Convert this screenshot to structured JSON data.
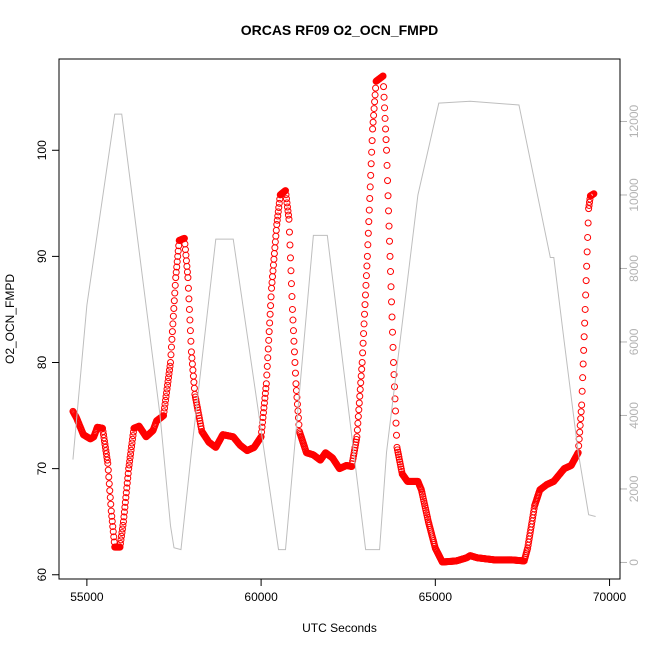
{
  "chart_data": {
    "type": "scatter",
    "title": "ORCAS RF09 O2_OCN_FMPD",
    "xlabel": "UTC Seconds",
    "ylabel": "O2_OCN_FMPD",
    "xlim": [
      54200,
      70300
    ],
    "ylim": [
      59.6,
      108.6
    ],
    "x_ticks": [
      55000,
      60000,
      65000,
      70000
    ],
    "y_ticks": [
      60,
      70,
      80,
      90,
      100
    ],
    "y2lim": [
      -450,
      13700
    ],
    "y2_ticks": [
      0,
      2000,
      4000,
      6000,
      8000,
      10000,
      12000
    ],
    "colors": {
      "points": "#ff0000",
      "altitude": "#bebebe"
    },
    "grid": false,
    "series": [
      {
        "marker": "open-circle",
        "axis": "left",
        "keypoints": [
          [
            54600,
            75.4
          ],
          [
            54700,
            74.8
          ],
          [
            54900,
            73.2
          ],
          [
            55100,
            72.8
          ],
          [
            55200,
            73.0
          ],
          [
            55300,
            73.9
          ],
          [
            55450,
            73.8
          ],
          [
            55600,
            70.5
          ],
          [
            55700,
            66.0
          ],
          [
            55800,
            62.6
          ],
          [
            55950,
            62.6
          ],
          [
            56050,
            65.0
          ],
          [
            56200,
            70.0
          ],
          [
            56350,
            73.8
          ],
          [
            56500,
            74.0
          ],
          [
            56700,
            73.0
          ],
          [
            56900,
            73.6
          ],
          [
            57000,
            74.5
          ],
          [
            57200,
            75.0
          ],
          [
            57400,
            80.0
          ],
          [
            57550,
            88.0
          ],
          [
            57650,
            91.5
          ],
          [
            57800,
            91.7
          ],
          [
            57900,
            88.0
          ],
          [
            58000,
            81.0
          ],
          [
            58100,
            77.0
          ],
          [
            58300,
            73.5
          ],
          [
            58500,
            72.5
          ],
          [
            58700,
            72.0
          ],
          [
            58900,
            73.2
          ],
          [
            59200,
            73.0
          ],
          [
            59400,
            72.2
          ],
          [
            59600,
            71.7
          ],
          [
            59800,
            72.0
          ],
          [
            60000,
            73.0
          ],
          [
            60150,
            78.0
          ],
          [
            60300,
            87.0
          ],
          [
            60450,
            93.0
          ],
          [
            60550,
            95.8
          ],
          [
            60700,
            96.2
          ],
          [
            60800,
            93.5
          ],
          [
            60900,
            85.0
          ],
          [
            61000,
            78.0
          ],
          [
            61100,
            73.5
          ],
          [
            61300,
            71.5
          ],
          [
            61500,
            71.3
          ],
          [
            61700,
            70.8
          ],
          [
            61850,
            71.5
          ],
          [
            62050,
            71.0
          ],
          [
            62250,
            70.0
          ],
          [
            62450,
            70.3
          ],
          [
            62600,
            70.2
          ],
          [
            62750,
            73.0
          ],
          [
            62900,
            80.0
          ],
          [
            63050,
            90.0
          ],
          [
            63200,
            102.0
          ],
          [
            63300,
            106.5
          ],
          [
            63500,
            107.0
          ],
          [
            63600,
            100.0
          ],
          [
            63700,
            90.0
          ],
          [
            63800,
            80.0
          ],
          [
            63900,
            72.0
          ],
          [
            64050,
            69.5
          ],
          [
            64200,
            68.8
          ],
          [
            64350,
            68.8
          ],
          [
            64500,
            68.8
          ],
          [
            64600,
            68.0
          ],
          [
            64800,
            65.0
          ],
          [
            65000,
            62.5
          ],
          [
            65200,
            61.2
          ],
          [
            65600,
            61.3
          ],
          [
            65900,
            61.6
          ],
          [
            66000,
            61.8
          ],
          [
            66200,
            61.6
          ],
          [
            66700,
            61.4
          ],
          [
            67200,
            61.4
          ],
          [
            67550,
            61.3
          ],
          [
            67650,
            62.5
          ],
          [
            67850,
            66.5
          ],
          [
            68000,
            68.0
          ],
          [
            68200,
            68.5
          ],
          [
            68400,
            68.8
          ],
          [
            68700,
            70.0
          ],
          [
            68900,
            70.3
          ],
          [
            69100,
            71.5
          ],
          [
            69200,
            76.0
          ],
          [
            69300,
            85.0
          ],
          [
            69400,
            94.5
          ],
          [
            69450,
            95.7
          ],
          [
            69550,
            95.9
          ]
        ]
      },
      {
        "line": true,
        "axis": "right",
        "points": [
          [
            54600,
            2800
          ],
          [
            55000,
            7000
          ],
          [
            55800,
            12200
          ],
          [
            56000,
            12200
          ],
          [
            57100,
            4000
          ],
          [
            57400,
            1000
          ],
          [
            57500,
            400
          ],
          [
            57700,
            350
          ],
          [
            58000,
            3000
          ],
          [
            58700,
            8800
          ],
          [
            59200,
            8800
          ],
          [
            60500,
            350
          ],
          [
            60700,
            350
          ],
          [
            61500,
            8900
          ],
          [
            61900,
            8900
          ],
          [
            63000,
            350
          ],
          [
            63400,
            350
          ],
          [
            63600,
            3000
          ],
          [
            64500,
            10000
          ],
          [
            65100,
            12500
          ],
          [
            66000,
            12550
          ],
          [
            67400,
            12450
          ],
          [
            68300,
            8300
          ],
          [
            68400,
            8300
          ],
          [
            68700,
            6000
          ],
          [
            69100,
            3000
          ],
          [
            69400,
            1300
          ],
          [
            69600,
            1250
          ]
        ]
      }
    ]
  }
}
